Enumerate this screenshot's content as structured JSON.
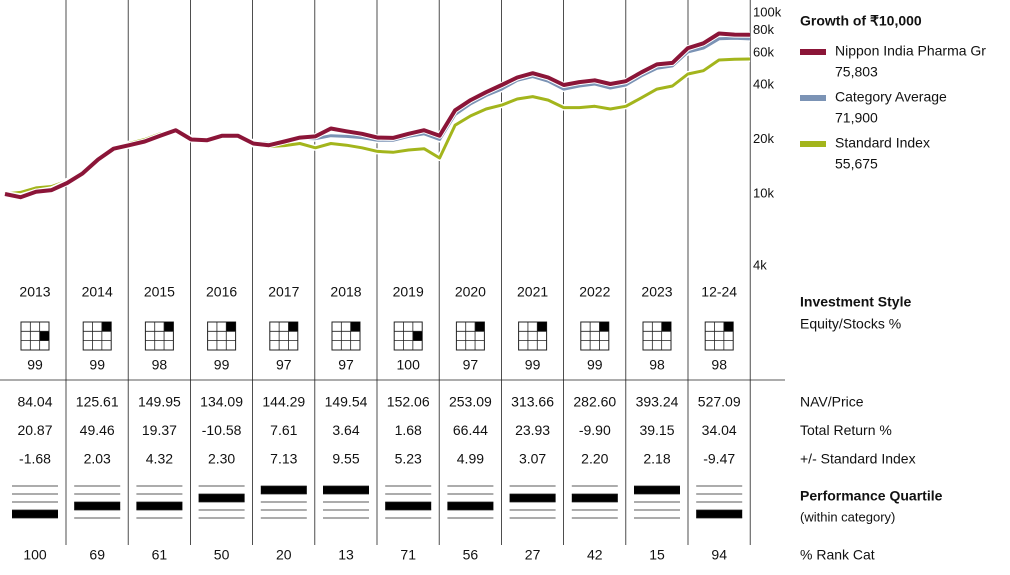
{
  "chart_data": {
    "type": "line",
    "title": "Growth of ₹10,000",
    "log_scale": true,
    "ylim": [
      4000,
      100000
    ],
    "yticks": [
      {
        "value": 100000,
        "label": "100k"
      },
      {
        "value": 80000,
        "label": "80k"
      },
      {
        "value": 60000,
        "label": "60k"
      },
      {
        "value": 40000,
        "label": "40k"
      },
      {
        "value": 20000,
        "label": "20k"
      },
      {
        "value": 10000,
        "label": "10k"
      },
      {
        "value": 4000,
        "label": "4k"
      }
    ],
    "xlim": [
      2013,
      2025
    ],
    "x": [
      2013,
      2013.25,
      2013.5,
      2013.75,
      2014,
      2014.25,
      2014.5,
      2014.75,
      2015,
      2015.25,
      2015.5,
      2015.75,
      2016,
      2016.25,
      2016.5,
      2016.75,
      2017,
      2017.25,
      2017.5,
      2017.75,
      2018,
      2018.25,
      2018.5,
      2018.75,
      2019,
      2019.25,
      2019.5,
      2019.75,
      2020,
      2020.25,
      2020.5,
      2020.75,
      2021,
      2021.25,
      2021.5,
      2021.75,
      2022,
      2022.25,
      2022.5,
      2022.75,
      2023,
      2023.25,
      2023.5,
      2023.75,
      2024,
      2024.25,
      2024.5,
      2024.75,
      2025
    ],
    "series": [
      {
        "name": "Standard Index",
        "color": "#a3b51c",
        "legend_value": {
          "value": 55675,
          "label": "55,675"
        },
        "values": [
          10000,
          10200,
          10800,
          11000,
          11800,
          13300,
          15500,
          17500,
          19000,
          20000,
          21500,
          22000,
          20000,
          19600,
          20800,
          20800,
          18800,
          18300,
          18500,
          19000,
          18000,
          19000,
          18600,
          18000,
          17200,
          17000,
          17500,
          17800,
          15800,
          24000,
          27000,
          29500,
          31000,
          33500,
          34500,
          33000,
          30000,
          30000,
          30500,
          29500,
          30500,
          34000,
          38000,
          39500,
          46000,
          48000,
          55000,
          55500,
          55675
        ]
      },
      {
        "name": "Category Average",
        "color": "#7b93b5",
        "legend_value": {
          "value": 71900,
          "label": "71,900"
        },
        "values": [
          10000,
          9700,
          10300,
          10600,
          11600,
          13000,
          15400,
          17600,
          18500,
          19400,
          21000,
          22400,
          20300,
          20000,
          21200,
          21100,
          19300,
          19000,
          19600,
          20300,
          20200,
          21000,
          20800,
          20500,
          19800,
          19800,
          20800,
          21500,
          20000,
          27500,
          31500,
          35000,
          38000,
          42500,
          44500,
          42000,
          38000,
          39500,
          40500,
          38500,
          40000,
          45000,
          49500,
          51000,
          61000,
          64000,
          72000,
          72500,
          71900
        ]
      },
      {
        "name": "Nippon India Pharma Gr",
        "color": "#8b1538",
        "legend_value": {
          "value": 75803,
          "label": "75,803"
        },
        "values": [
          10000,
          9600,
          10300,
          10500,
          11500,
          13000,
          15500,
          17800,
          18600,
          19500,
          21000,
          22500,
          20000,
          19800,
          21000,
          21000,
          19000,
          18600,
          19500,
          20500,
          20800,
          23000,
          22200,
          21500,
          20500,
          20400,
          21500,
          22500,
          21000,
          29000,
          33000,
          36500,
          40000,
          44000,
          46500,
          44000,
          40000,
          41500,
          42500,
          40500,
          42000,
          47000,
          52000,
          53000,
          64000,
          68000,
          77000,
          76000,
          75803
        ]
      }
    ]
  },
  "table": {
    "years": [
      "2013",
      "2014",
      "2015",
      "2016",
      "2017",
      "2018",
      "2019",
      "2020",
      "2021",
      "2022",
      "2023",
      "12-24"
    ],
    "style_title": "Investment Style",
    "style_label": "Equity/Stocks %",
    "style_cell": [
      5,
      2,
      2,
      2,
      2,
      2,
      5,
      2,
      2,
      2,
      2,
      2
    ],
    "equity_pct": [
      "99",
      "99",
      "98",
      "99",
      "97",
      "97",
      "100",
      "97",
      "99",
      "99",
      "98",
      "98"
    ],
    "rows": [
      {
        "label": "NAV/Price",
        "values": [
          "84.04",
          "125.61",
          "149.95",
          "134.09",
          "144.29",
          "149.54",
          "152.06",
          "253.09",
          "313.66",
          "282.60",
          "393.24",
          "527.09"
        ]
      },
      {
        "label": "Total Return %",
        "values": [
          "20.87",
          "49.46",
          "19.37",
          "-10.58",
          "7.61",
          "3.64",
          "1.68",
          "66.44",
          "23.93",
          "-9.90",
          "39.15",
          "34.04"
        ]
      },
      {
        "label": "+/- Standard Index",
        "values": [
          "-1.68",
          "2.03",
          "4.32",
          "2.30",
          "7.13",
          "9.55",
          "5.23",
          "4.99",
          "3.07",
          "2.20",
          "2.18",
          "-9.47"
        ]
      }
    ],
    "quartile_title": "Performance Quartile",
    "quartile_subtitle": "(within category)",
    "quartiles": [
      4,
      3,
      3,
      2,
      1,
      1,
      3,
      3,
      2,
      2,
      1,
      4
    ],
    "rank_label": "% Rank Cat",
    "rank": [
      "100",
      "69",
      "61",
      "50",
      "20",
      "13",
      "71",
      "56",
      "27",
      "42",
      "15",
      "94"
    ]
  }
}
